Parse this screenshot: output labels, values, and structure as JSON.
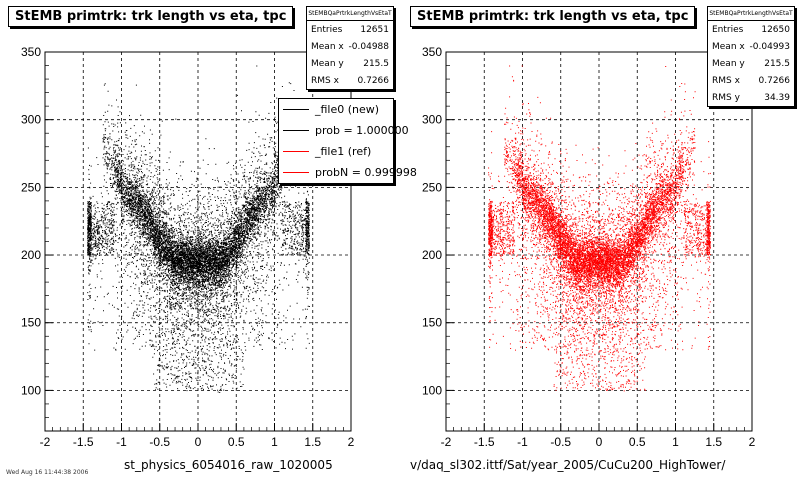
{
  "footer_text": "Wed Aug 16 11:44:38 2006",
  "chart_data": [
    {
      "type": "scatter",
      "title": "StEMB primtrk: trk length vs eta, tpc",
      "xlabel": "st_physics_6054016_raw_1020005",
      "ylabel": "",
      "xlim": [
        -2,
        2
      ],
      "ylim": [
        70,
        350
      ],
      "x_ticks": [
        "-2",
        "-1.5",
        "-1",
        "-0.5",
        "0",
        "0.5",
        "1",
        "1.5",
        "2"
      ],
      "y_ticks": [
        "100",
        "150",
        "200",
        "250",
        "300",
        "350"
      ],
      "grid": true,
      "marker_color": "#000000",
      "stats": {
        "header": "StEMBQaPrtrkLengthVsEtaT",
        "rows": [
          {
            "label": "Entries",
            "value": "12651"
          },
          {
            "label": "Mean x",
            "value": "-0.04988"
          },
          {
            "label": "Mean y",
            "value": "215.5"
          },
          {
            "label": "RMS x",
            "value": "0.7266"
          }
        ]
      },
      "legend": [
        {
          "label": "_file0 (new)",
          "color": "#000000"
        },
        {
          "label": "prob = 1.000000",
          "color": "#000000"
        },
        {
          "label": "_file1 (ref)",
          "color": "#ff0000"
        },
        {
          "label": "probN = 0.999998",
          "color": "#ff0000"
        }
      ],
      "point_count": 12651
    },
    {
      "type": "scatter",
      "title": "StEMB primtrk: trk length vs eta, tpc",
      "xlabel": "v/daq_sl302.ittf/Sat/year_2005/CuCu200_HighTower/",
      "ylabel": "",
      "xlim": [
        -2,
        2
      ],
      "ylim": [
        70,
        350
      ],
      "x_ticks": [
        "-2",
        "-1.5",
        "-1",
        "-0.5",
        "0",
        "0.5",
        "1",
        "1.5",
        "2"
      ],
      "y_ticks": [
        "100",
        "150",
        "200",
        "250",
        "300",
        "350"
      ],
      "grid": true,
      "marker_color": "#ff0000",
      "stats": {
        "header": "StEMBQaPrtrkLengthVsEtaT",
        "rows": [
          {
            "label": "Entries",
            "value": "12650"
          },
          {
            "label": "Mean x",
            "value": "-0.04993"
          },
          {
            "label": "Mean y",
            "value": "215.5"
          },
          {
            "label": "RMS x",
            "value": "0.7266"
          },
          {
            "label": "RMS y",
            "value": "34.39"
          }
        ]
      },
      "point_count": 12650
    }
  ]
}
